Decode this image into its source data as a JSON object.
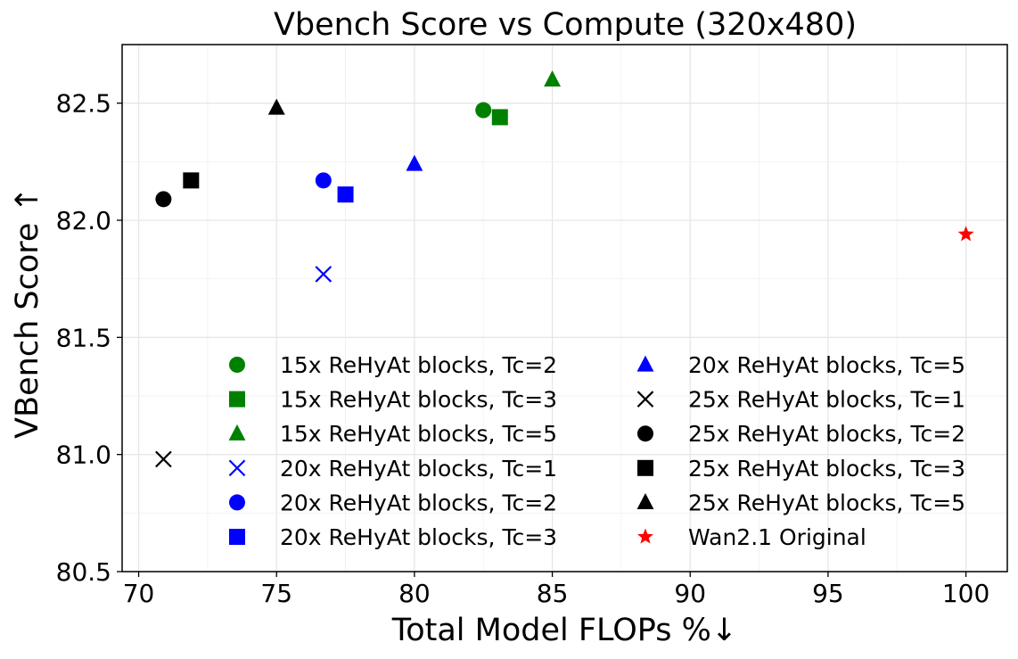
{
  "chart_data": {
    "type": "scatter",
    "title": "Vbench Score vs Compute (320x480)",
    "xlabel": "Total Model FLOPs %↓",
    "ylabel": "VBench Score ↑",
    "xlim": [
      69.4,
      101.5
    ],
    "ylim": [
      80.5,
      82.75
    ],
    "xticks": [
      70,
      75,
      80,
      85,
      90,
      95,
      100
    ],
    "yticks": [
      80.5,
      81.0,
      81.5,
      82.0,
      82.5
    ],
    "ytick_labels": [
      "80.5",
      "81.0",
      "81.5",
      "82.0",
      "82.5"
    ],
    "grid": true,
    "legend": {
      "placement": "lower-right",
      "columns": 2
    },
    "series": [
      {
        "name": "15x ReHyAt blocks, Tc=2",
        "color": "#008000",
        "marker": "circle",
        "x": 82.5,
        "y": 82.47
      },
      {
        "name": "15x ReHyAt blocks, Tc=3",
        "color": "#008000",
        "marker": "square",
        "x": 83.1,
        "y": 82.44
      },
      {
        "name": "15x ReHyAt blocks, Tc=5",
        "color": "#008000",
        "marker": "triangle",
        "x": 85.0,
        "y": 82.6
      },
      {
        "name": "20x ReHyAt blocks, Tc=1",
        "color": "#0000ff",
        "marker": "x",
        "x": 76.7,
        "y": 81.77
      },
      {
        "name": "20x ReHyAt blocks, Tc=2",
        "color": "#0000ff",
        "marker": "circle",
        "x": 76.7,
        "y": 82.17
      },
      {
        "name": "20x ReHyAt blocks, Tc=3",
        "color": "#0000ff",
        "marker": "square",
        "x": 77.5,
        "y": 82.11
      },
      {
        "name": "20x ReHyAt blocks, Tc=5",
        "color": "#0000ff",
        "marker": "triangle",
        "x": 80.0,
        "y": 82.24
      },
      {
        "name": "25x ReHyAt blocks, Tc=1",
        "color": "#000000",
        "marker": "x",
        "x": 70.9,
        "y": 80.98
      },
      {
        "name": "25x ReHyAt blocks, Tc=2",
        "color": "#000000",
        "marker": "circle",
        "x": 70.9,
        "y": 82.09
      },
      {
        "name": "25x ReHyAt blocks, Tc=3",
        "color": "#000000",
        "marker": "square",
        "x": 71.9,
        "y": 82.17
      },
      {
        "name": "25x ReHyAt blocks, Tc=5",
        "color": "#000000",
        "marker": "triangle",
        "x": 75.0,
        "y": 82.48
      },
      {
        "name": "Wan2.1 Original",
        "color": "#ff0000",
        "marker": "star",
        "x": 100.0,
        "y": 81.94
      }
    ]
  }
}
